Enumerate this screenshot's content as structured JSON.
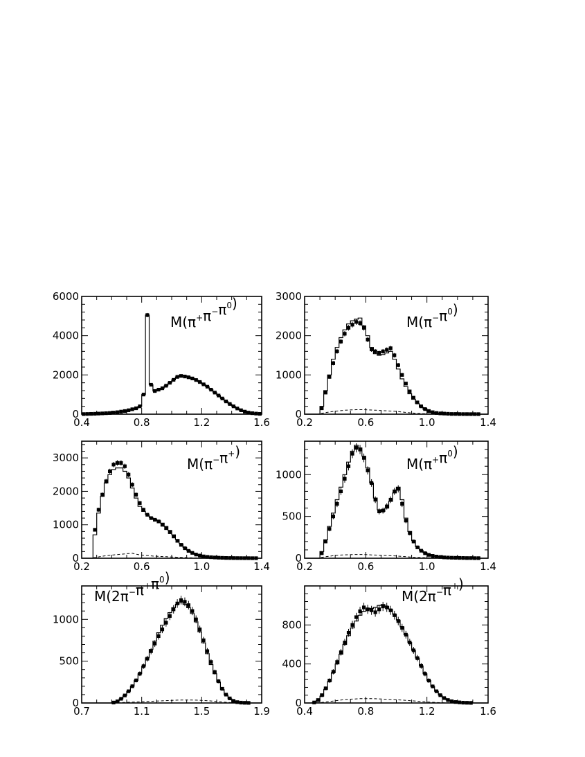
{
  "chart_data": [
    {
      "type": "histogram",
      "label": "M(π⁺π⁻π⁰)",
      "label_parts": [
        {
          "t": "M(π"
        },
        {
          "t": "+",
          "sup": true
        },
        {
          "t": "π"
        },
        {
          "t": "−",
          "sup": true
        },
        {
          "t": "π"
        },
        {
          "t": "0",
          "sup": true
        },
        {
          "t": ")"
        }
      ],
      "xlim": [
        0.4,
        1.6
      ],
      "ylim": [
        0,
        6000
      ],
      "xticks": [
        0.4,
        0.8,
        1.2,
        1.6
      ],
      "xtick_labels": [
        "0.4",
        "0.8",
        "1.2",
        "1.6"
      ],
      "yticks": [
        0,
        2000,
        4000,
        6000
      ],
      "ytick_labels": [
        "0",
        "2000",
        "4000",
        "6000"
      ],
      "bins": [
        0.4,
        1.6,
        48
      ],
      "data": [
        5,
        10,
        15,
        20,
        30,
        40,
        50,
        60,
        80,
        100,
        130,
        160,
        200,
        250,
        300,
        400,
        1000,
        5050,
        1500,
        1180,
        1250,
        1320,
        1450,
        1600,
        1750,
        1900,
        1950,
        1920,
        1880,
        1820,
        1740,
        1640,
        1520,
        1400,
        1250,
        1100,
        950,
        800,
        650,
        520,
        400,
        290,
        200,
        130,
        80,
        50,
        30,
        15
      ],
      "model": [
        5,
        10,
        15,
        20,
        30,
        40,
        50,
        60,
        80,
        100,
        130,
        160,
        200,
        250,
        300,
        400,
        1000,
        5050,
        1500,
        1180,
        1250,
        1320,
        1450,
        1600,
        1750,
        1900,
        1980,
        1950,
        1900,
        1830,
        1740,
        1640,
        1520,
        1400,
        1250,
        1100,
        950,
        800,
        650,
        520,
        400,
        290,
        200,
        130,
        80,
        50,
        30,
        15
      ],
      "background": [
        0,
        0,
        0,
        0,
        0,
        0,
        0,
        0,
        0,
        0,
        0,
        0,
        0,
        0,
        0,
        0,
        0,
        0,
        0,
        0,
        0,
        0,
        0,
        0,
        0,
        0,
        0,
        0,
        0,
        0,
        0,
        0,
        0,
        0,
        0,
        0,
        0,
        0,
        0,
        0,
        0,
        0,
        0,
        0,
        0,
        0,
        0,
        0
      ]
    },
    {
      "type": "histogram",
      "label": "M(π⁻π⁰)",
      "label_parts": [
        {
          "t": "M(π"
        },
        {
          "t": "−",
          "sup": true
        },
        {
          "t": "π"
        },
        {
          "t": "0",
          "sup": true
        },
        {
          "t": ")"
        }
      ],
      "xlim": [
        0.2,
        1.4
      ],
      "ylim": [
        0,
        3000
      ],
      "xticks": [
        0.2,
        0.6,
        1.0,
        1.4
      ],
      "xtick_labels": [
        "0.2",
        "0.6",
        "1.0",
        "1.4"
      ],
      "yticks": [
        0,
        1000,
        2000,
        3000
      ],
      "ytick_labels": [
        "0",
        "1000",
        "2000",
        "3000"
      ],
      "bins": [
        0.2,
        1.4,
        48
      ],
      "data": [
        0,
        0,
        0,
        0,
        150,
        550,
        950,
        1300,
        1600,
        1850,
        2050,
        2200,
        2280,
        2350,
        2320,
        2200,
        1900,
        1650,
        1600,
        1560,
        1600,
        1640,
        1680,
        1500,
        1250,
        1000,
        780,
        580,
        420,
        300,
        200,
        130,
        80,
        50,
        30,
        20,
        15,
        10,
        5,
        5,
        3,
        2,
        2,
        1,
        1,
        1,
        0,
        0
      ],
      "model": [
        0,
        0,
        0,
        0,
        200,
        600,
        1000,
        1400,
        1700,
        1950,
        2150,
        2300,
        2380,
        2420,
        2450,
        2250,
        2000,
        1700,
        1540,
        1500,
        1520,
        1560,
        1600,
        1400,
        1150,
        900,
        700,
        520,
        380,
        270,
        180,
        120,
        70,
        45,
        25,
        15,
        10,
        8,
        5,
        3,
        2,
        2,
        1,
        1,
        1,
        0,
        0,
        0
      ],
      "background": [
        0,
        0,
        0,
        0,
        20,
        40,
        55,
        70,
        80,
        90,
        100,
        105,
        110,
        115,
        115,
        115,
        110,
        105,
        100,
        95,
        90,
        85,
        80,
        75,
        65,
        55,
        45,
        35,
        28,
        20,
        15,
        10,
        8,
        6,
        4,
        3,
        2,
        1,
        1,
        0,
        0,
        0,
        0,
        0,
        0,
        0,
        0,
        0
      ]
    },
    {
      "type": "histogram",
      "label": "M(π⁻π⁺)",
      "label_parts": [
        {
          "t": "M(π"
        },
        {
          "t": "−",
          "sup": true
        },
        {
          "t": "π"
        },
        {
          "t": "+",
          "sup": true
        },
        {
          "t": ")"
        }
      ],
      "xlim": [
        0.2,
        1.4
      ],
      "ylim": [
        0,
        3500
      ],
      "xticks": [
        0.2,
        0.6,
        1.0,
        1.4
      ],
      "xtick_labels": [
        "0.2",
        "0.6",
        "1.0",
        "1.4"
      ],
      "yticks": [
        0,
        1000,
        2000,
        3000
      ],
      "ytick_labels": [
        "0",
        "1000",
        "2000",
        "3000"
      ],
      "bins": [
        0.2,
        1.4,
        48
      ],
      "data": [
        0,
        0,
        0,
        850,
        1450,
        1900,
        2300,
        2600,
        2800,
        2850,
        2850,
        2750,
        2500,
        2200,
        1900,
        1650,
        1450,
        1300,
        1200,
        1150,
        1100,
        1000,
        900,
        780,
        650,
        520,
        400,
        300,
        220,
        160,
        110,
        80,
        55,
        40,
        30,
        22,
        16,
        12,
        8,
        6,
        5,
        4,
        3,
        2,
        2,
        1,
        1,
        0
      ],
      "model": [
        0,
        0,
        0,
        700,
        1350,
        1850,
        2250,
        2500,
        2650,
        2700,
        2700,
        2600,
        2400,
        2100,
        1800,
        1550,
        1400,
        1300,
        1220,
        1170,
        1120,
        1050,
        950,
        830,
        700,
        560,
        430,
        320,
        230,
        160,
        110,
        75,
        50,
        35,
        25,
        18,
        13,
        9,
        6,
        5,
        4,
        3,
        2,
        2,
        1,
        1,
        0,
        0
      ],
      "background": [
        0,
        0,
        0,
        20,
        40,
        60,
        75,
        90,
        100,
        110,
        120,
        130,
        140,
        150,
        120,
        100,
        90,
        80,
        70,
        60,
        55,
        50,
        45,
        40,
        35,
        30,
        25,
        20,
        15,
        12,
        10,
        8,
        6,
        5,
        4,
        3,
        2,
        1,
        1,
        1,
        0,
        0,
        0,
        0,
        0,
        0,
        0,
        0
      ]
    },
    {
      "type": "histogram",
      "label": "M(π⁺π⁰)",
      "label_parts": [
        {
          "t": "M(π"
        },
        {
          "t": "+",
          "sup": true
        },
        {
          "t": "π"
        },
        {
          "t": "0",
          "sup": true
        },
        {
          "t": ")"
        }
      ],
      "xlim": [
        0.2,
        1.4
      ],
      "ylim": [
        0,
        1400
      ],
      "xticks": [
        0.2,
        0.6,
        1.0,
        1.4
      ],
      "xtick_labels": [
        "0.2",
        "0.6",
        "1.0",
        "1.4"
      ],
      "yticks": [
        0,
        500,
        1000
      ],
      "ytick_labels": [
        "0",
        "500",
        "1000"
      ],
      "bins": [
        0.2,
        1.4,
        48
      ],
      "data": [
        0,
        0,
        0,
        0,
        60,
        200,
        350,
        500,
        650,
        800,
        950,
        1100,
        1250,
        1320,
        1300,
        1200,
        1050,
        900,
        700,
        560,
        570,
        620,
        700,
        800,
        830,
        650,
        450,
        300,
        200,
        130,
        90,
        60,
        40,
        28,
        20,
        15,
        10,
        8,
        6,
        5,
        4,
        3,
        2,
        2,
        1,
        1,
        0,
        0
      ],
      "model": [
        0,
        0,
        0,
        0,
        80,
        220,
        380,
        540,
        700,
        850,
        1000,
        1150,
        1280,
        1350,
        1320,
        1220,
        1080,
        900,
        720,
        580,
        560,
        600,
        680,
        780,
        850,
        700,
        480,
        320,
        210,
        140,
        95,
        65,
        45,
        30,
        22,
        16,
        12,
        9,
        7,
        5,
        4,
        3,
        2,
        2,
        1,
        1,
        0,
        0
      ],
      "background": [
        0,
        0,
        0,
        0,
        10,
        18,
        25,
        30,
        35,
        38,
        40,
        42,
        44,
        45,
        45,
        44,
        42,
        40,
        38,
        36,
        34,
        32,
        30,
        28,
        25,
        22,
        18,
        15,
        12,
        10,
        8,
        6,
        5,
        4,
        3,
        2,
        2,
        1,
        1,
        0,
        0,
        0,
        0,
        0,
        0,
        0,
        0,
        0
      ]
    },
    {
      "type": "histogram",
      "label": "M(2π⁻π⁺π⁰)",
      "label_parts": [
        {
          "t": "M(2π"
        },
        {
          "t": "−",
          "sup": true
        },
        {
          "t": "π"
        },
        {
          "t": "+",
          "sup": true
        },
        {
          "t": "π"
        },
        {
          "t": "0",
          "sup": true
        },
        {
          "t": ")"
        }
      ],
      "xlim": [
        0.7,
        1.9
      ],
      "ylim": [
        0,
        1400
      ],
      "xticks": [
        0.7,
        1.1,
        1.5,
        1.9
      ],
      "xtick_labels": [
        "0.7",
        "1.1",
        "1.5",
        "1.9"
      ],
      "yticks": [
        0,
        500,
        1000
      ],
      "ytick_labels": [
        "0",
        "500",
        "1000"
      ],
      "bins": [
        0.7,
        1.9,
        48
      ],
      "data": [
        0,
        0,
        0,
        0,
        0,
        0,
        0,
        0,
        5,
        20,
        50,
        90,
        140,
        200,
        270,
        350,
        440,
        530,
        620,
        710,
        800,
        880,
        960,
        1040,
        1120,
        1190,
        1230,
        1210,
        1170,
        1100,
        1000,
        880,
        750,
        620,
        490,
        370,
        260,
        170,
        100,
        55,
        25,
        10,
        4,
        2,
        1,
        0,
        0,
        0
      ],
      "model": [
        0,
        0,
        0,
        0,
        0,
        0,
        0,
        0,
        5,
        20,
        50,
        90,
        140,
        200,
        270,
        350,
        440,
        540,
        640,
        740,
        840,
        930,
        1010,
        1080,
        1140,
        1180,
        1200,
        1180,
        1140,
        1070,
        970,
        850,
        720,
        590,
        460,
        350,
        250,
        160,
        95,
        50,
        22,
        8,
        3,
        1,
        0,
        0,
        0,
        0
      ],
      "background": [
        0,
        0,
        0,
        0,
        0,
        0,
        0,
        0,
        1,
        2,
        4,
        6,
        8,
        10,
        12,
        14,
        16,
        18,
        20,
        22,
        24,
        26,
        28,
        30,
        32,
        34,
        35,
        36,
        36,
        35,
        34,
        32,
        30,
        27,
        24,
        20,
        16,
        12,
        8,
        5,
        3,
        2,
        1,
        0,
        0,
        0,
        0,
        0
      ]
    },
    {
      "type": "histogram",
      "label": "M(2π⁻π⁺)",
      "label_parts": [
        {
          "t": "M(2π"
        },
        {
          "t": "−",
          "sup": true
        },
        {
          "t": "π"
        },
        {
          "t": "+",
          "sup": true
        },
        {
          "t": ")"
        }
      ],
      "xlim": [
        0.4,
        1.6
      ],
      "ylim": [
        0,
        1200
      ],
      "xticks": [
        0.4,
        0.8,
        1.2,
        1.6
      ],
      "xtick_labels": [
        "0.4",
        "0.8",
        "1.2",
        "1.6"
      ],
      "yticks": [
        0,
        400,
        800
      ],
      "ytick_labels": [
        "0",
        "400",
        "800"
      ],
      "bins": [
        0.4,
        1.6,
        48
      ],
      "data": [
        0,
        0,
        5,
        30,
        80,
        150,
        230,
        320,
        420,
        520,
        620,
        720,
        800,
        880,
        940,
        980,
        960,
        950,
        930,
        960,
        990,
        980,
        950,
        900,
        840,
        770,
        700,
        620,
        540,
        460,
        380,
        300,
        230,
        170,
        120,
        80,
        50,
        30,
        18,
        10,
        6,
        3,
        2,
        1,
        0,
        0,
        0,
        0
      ],
      "model": [
        0,
        0,
        5,
        25,
        70,
        140,
        220,
        310,
        400,
        500,
        600,
        690,
        770,
        840,
        900,
        940,
        960,
        970,
        980,
        1000,
        1010,
        990,
        960,
        910,
        850,
        780,
        700,
        620,
        540,
        460,
        380,
        300,
        230,
        170,
        120,
        80,
        50,
        30,
        18,
        10,
        6,
        3,
        2,
        1,
        0,
        0,
        0,
        0
      ],
      "background": [
        0,
        0,
        0,
        2,
        5,
        10,
        15,
        20,
        25,
        30,
        35,
        38,
        40,
        42,
        44,
        45,
        45,
        44,
        43,
        42,
        40,
        38,
        36,
        34,
        32,
        30,
        27,
        24,
        21,
        18,
        15,
        12,
        9,
        7,
        5,
        3,
        2,
        1,
        1,
        0,
        0,
        0,
        0,
        0,
        0,
        0,
        0,
        0
      ]
    }
  ]
}
